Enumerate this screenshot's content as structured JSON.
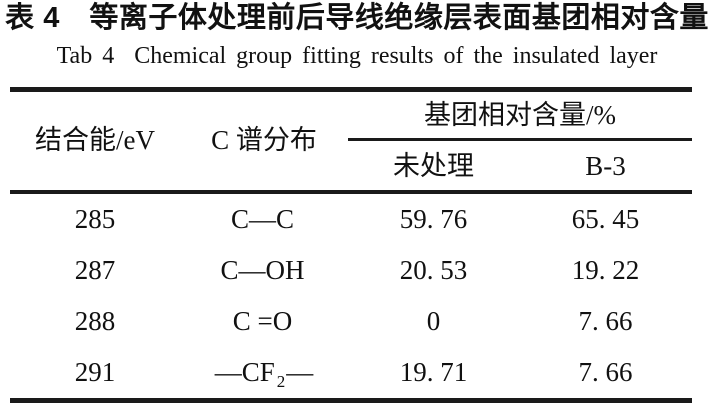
{
  "titles": {
    "zh": "表 4　等离子体处理前后导线绝缘层表面基团相对含量",
    "en": "Tab 4  Chemical group fitting results of the insulated layer"
  },
  "table": {
    "header": {
      "binding_energy": "结合能/eV",
      "c_spectrum": "C 谱分布",
      "group_content": "基团相对含量/%",
      "untreated": "未处理",
      "b3": "B-3"
    },
    "rows": [
      {
        "energy": "285",
        "formula_pre": "C—C",
        "formula_sub": "",
        "formula_post": "",
        "untreated": "59. 76",
        "b3": "65. 45"
      },
      {
        "energy": "287",
        "formula_pre": "C—OH",
        "formula_sub": "",
        "formula_post": "",
        "untreated": "20. 53",
        "b3": "19. 22"
      },
      {
        "energy": "288",
        "formula_pre": "C =O",
        "formula_sub": "",
        "formula_post": "",
        "untreated": "0",
        "b3": "7. 66"
      },
      {
        "energy": "291",
        "formula_pre": "—CF",
        "formula_sub": "2",
        "formula_post": "—",
        "untreated": "19. 71",
        "b3": "7. 66"
      }
    ]
  },
  "colors": {
    "background": "#ffffff",
    "text": "#111111",
    "rule": "#1a1a1a"
  }
}
